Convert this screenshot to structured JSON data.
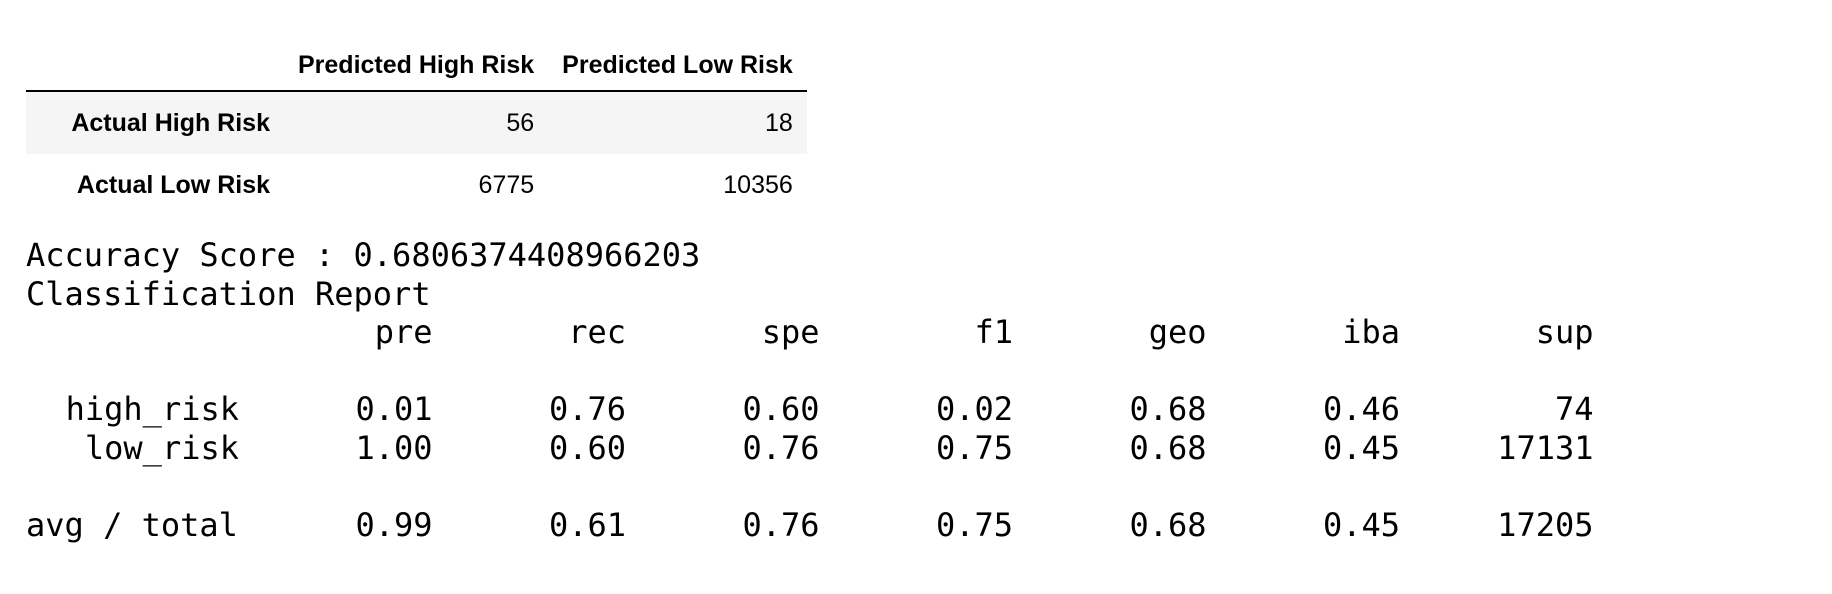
{
  "confusion_matrix": {
    "columns": [
      "Predicted High Risk",
      "Predicted Low Risk"
    ],
    "rows": [
      {
        "label": "Actual High Risk",
        "values": [
          "56",
          "18"
        ]
      },
      {
        "label": "Actual Low Risk",
        "values": [
          "6775",
          "10356"
        ]
      }
    ]
  },
  "accuracy": {
    "label": "Accuracy Score :",
    "value": "0.6806374408966203"
  },
  "report": {
    "title": "Classification Report",
    "headers": [
      "pre",
      "rec",
      "spe",
      "f1",
      "geo",
      "iba",
      "sup"
    ],
    "rows": [
      {
        "label": "high_risk",
        "values": [
          "0.01",
          "0.76",
          "0.60",
          "0.02",
          "0.68",
          "0.46",
          "74"
        ]
      },
      {
        "label": "low_risk",
        "values": [
          "1.00",
          "0.60",
          "0.76",
          "0.75",
          "0.68",
          "0.45",
          "17131"
        ]
      }
    ],
    "total": {
      "label": "avg / total",
      "values": [
        "0.99",
        "0.61",
        "0.76",
        "0.75",
        "0.68",
        "0.45",
        "17205"
      ]
    }
  }
}
